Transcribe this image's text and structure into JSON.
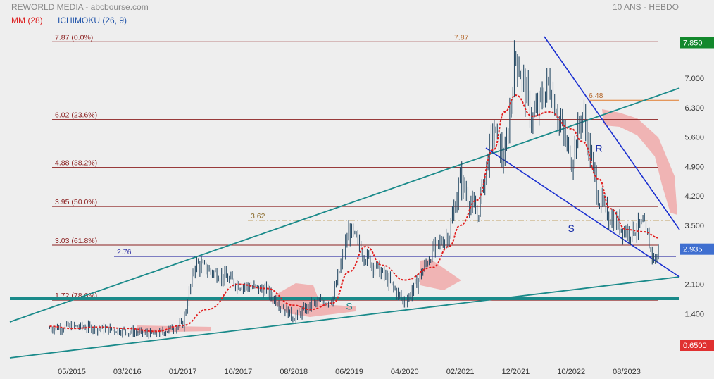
{
  "header": {
    "title": "REWORLD MEDIA - abcbourse.com",
    "timeframe": "10 ANS - HEBDO",
    "indicator_ma": "MM (28)",
    "indicator_ichimoku": "ICHIMOKU (26, 9)"
  },
  "colors": {
    "background": "#eeeeee",
    "price": "#2a4c66",
    "ma": "#e21d1d",
    "cloud": "#f0a0a0",
    "fib": "#8b2020",
    "trend_teal": "#1a8a8a",
    "trend_blue": "#1a2fd0",
    "last_price_badge": "#3f6fd0",
    "top_badge": "#12882c",
    "bottom_badge": "#e03030"
  },
  "chart_data": {
    "type": "line",
    "title": "REWORLD MEDIA - abcbourse.com",
    "subtitle": "10 ANS - HEBDO",
    "xlabel": "",
    "ylabel": "",
    "x_ticks": [
      "05/2015",
      "03/2016",
      "01/2017",
      "10/2017",
      "08/2018",
      "06/2019",
      "04/2020",
      "02/2021",
      "12/2021",
      "10/2022",
      "08/2023"
    ],
    "y_ticks": [
      "7.000",
      "6.300",
      "5.600",
      "4.900",
      "4.200",
      "3.500",
      "2.100",
      "1.400"
    ],
    "ylim": [
      0.65,
      7.85
    ],
    "legend": [
      "MM (28)",
      "ICHIMOKU (26, 9)"
    ],
    "series": [
      {
        "name": "REWORLD MEDIA",
        "x": [
          "01/2015",
          "05/2015",
          "10/2015",
          "03/2016",
          "08/2016",
          "01/2017",
          "03/2017",
          "10/2017",
          "03/2018",
          "08/2018",
          "11/2018",
          "03/2019",
          "06/2019",
          "09/2019",
          "12/2019",
          "04/2020",
          "06/2020",
          "09/2020",
          "12/2020",
          "02/2021",
          "05/2021",
          "08/2021",
          "10/2021",
          "12/2021",
          "03/2022",
          "06/2022",
          "10/2022",
          "12/2022",
          "03/2023",
          "05/2023",
          "08/2023",
          "11/2023",
          "01/2024",
          "02/2024"
        ],
        "values": [
          1.05,
          1.1,
          1.05,
          0.98,
          0.9,
          1.15,
          2.6,
          2.1,
          1.95,
          1.3,
          1.6,
          1.75,
          3.4,
          2.75,
          2.35,
          1.65,
          2.1,
          2.9,
          3.3,
          4.6,
          3.7,
          5.8,
          5.0,
          7.6,
          6.0,
          6.9,
          5.0,
          6.2,
          4.1,
          3.7,
          3.35,
          3.5,
          2.65,
          2.935
        ]
      },
      {
        "name": "MM (28)",
        "x": [
          "01/2015",
          "05/2015",
          "10/2015",
          "03/2016",
          "08/2016",
          "01/2017",
          "05/2017",
          "10/2017",
          "03/2018",
          "08/2018",
          "11/2018",
          "03/2019",
          "06/2019",
          "09/2019",
          "12/2019",
          "04/2020",
          "09/2020",
          "12/2020",
          "02/2021",
          "05/2021",
          "08/2021",
          "10/2021",
          "12/2021",
          "03/2022",
          "06/2022",
          "10/2022",
          "12/2022",
          "03/2023",
          "05/2023",
          "08/2023",
          "11/2023",
          "02/2024"
        ],
        "values": [
          1.1,
          1.05,
          1.08,
          1.05,
          0.98,
          1.12,
          1.5,
          2.1,
          2.0,
          1.6,
          1.5,
          1.65,
          2.4,
          3.0,
          2.55,
          2.2,
          2.5,
          3.0,
          3.5,
          4.1,
          5.3,
          6.2,
          6.6,
          6.1,
          6.2,
          5.8,
          5.5,
          4.6,
          3.9,
          3.4,
          3.35,
          3.2
        ]
      }
    ],
    "fibonacci": [
      {
        "label": "7.87  (0.0%)",
        "value": 7.87
      },
      {
        "label": "6.02  (23.6%)",
        "value": 6.02
      },
      {
        "label": "4.88  (38.2%)",
        "value": 4.88
      },
      {
        "label": "3.95  (50.0%)",
        "value": 3.95
      },
      {
        "label": "3.03  (61.8%)",
        "value": 3.03
      },
      {
        "label": "1.72  (78.6%)",
        "value": 1.72
      }
    ],
    "levels": [
      {
        "label": "7.87",
        "value": 7.87
      },
      {
        "label": "6.48",
        "value": 6.48
      },
      {
        "label": "3.62",
        "value": 3.62
      },
      {
        "label": "2.76",
        "value": 2.76
      }
    ],
    "annotations": [
      {
        "text": "R",
        "x": "03/2023",
        "y": 5.25
      },
      {
        "text": "S",
        "x": "10/2022",
        "y": 3.35
      },
      {
        "text": "S",
        "x": "06/2019",
        "y": 1.5
      }
    ],
    "badges": {
      "top": "7.850",
      "last": "2.935",
      "bottom": "0.6500"
    },
    "grid": false,
    "legend_position": "top-left"
  }
}
